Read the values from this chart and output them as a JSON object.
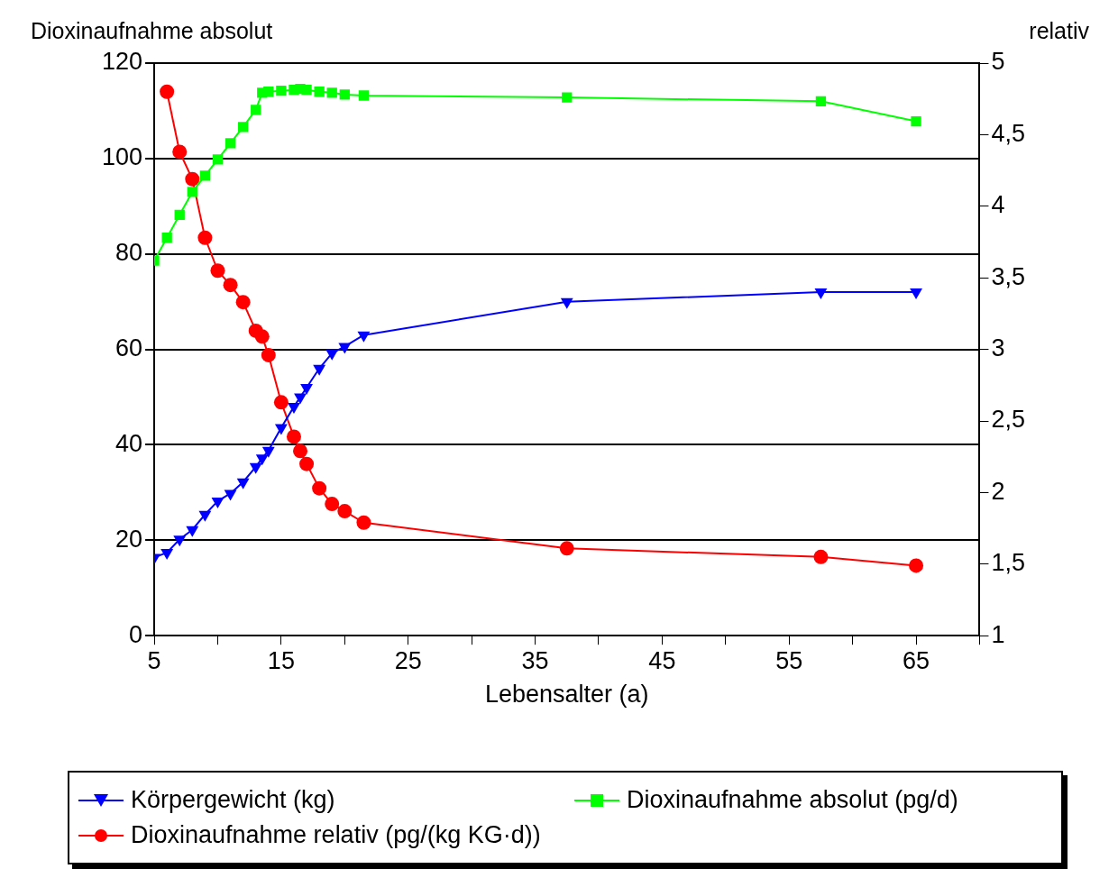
{
  "chart_data": {
    "type": "line",
    "xlabel": "Lebensalter (a)",
    "ylabel": "Dioxinaufnahme absolut",
    "y2label": "relativ",
    "xlim": [
      5,
      70
    ],
    "xticks": [
      5,
      {
        "value": 10,
        "label": null
      },
      15,
      {
        "value": 20,
        "label": null
      },
      25,
      {
        "value": 30,
        "label": null
      },
      35,
      {
        "value": 40,
        "label": null
      },
      45,
      {
        "value": 50,
        "label": null
      },
      55,
      {
        "value": 60,
        "label": null
      },
      65,
      {
        "value": 70,
        "label": null
      }
    ],
    "ylim": [
      0,
      120
    ],
    "yticks": [
      0,
      20,
      40,
      60,
      80,
      100,
      120
    ],
    "y2lim": [
      1,
      5
    ],
    "y2ticks": [
      1,
      {
        "value": 1.5,
        "label": "1,5"
      },
      2,
      {
        "value": 2.5,
        "label": "2,5"
      },
      3,
      {
        "value": 3.5,
        "label": "3,5"
      },
      4,
      {
        "value": 4.5,
        "label": "4,5"
      },
      5
    ],
    "grid": "y",
    "legend": "bottom",
    "line_style": "solid",
    "series": [
      {
        "name": "Körpergewicht (kg)",
        "color": "#0000ff",
        "marker": "triangle",
        "x": [
          5,
          6,
          7,
          8,
          9,
          10,
          11,
          12,
          13,
          13.5,
          14,
          15,
          16,
          16.5,
          17,
          18,
          19,
          20,
          21.5,
          37.5,
          57.5,
          65
        ],
        "values": [
          16.4,
          17.4,
          20.2,
          22.2,
          25.4,
          28.2,
          29.8,
          32.2,
          35.4,
          37.2,
          38.8,
          43.6,
          48,
          50,
          52,
          56,
          59.2,
          60.6,
          63,
          70,
          72,
          72
        ]
      },
      {
        "name": "Dioxinaufnahme absolut (pg/d)",
        "color": "#00ff00",
        "marker": "square",
        "x": [
          5,
          6,
          7,
          8,
          9,
          10,
          11,
          12,
          13,
          13.5,
          14,
          15,
          16,
          16.5,
          17,
          18,
          19,
          20,
          21.5,
          37.5,
          57.5,
          65
        ],
        "values": [
          78.6,
          83.4,
          88.2,
          93,
          96.4,
          99.8,
          103.2,
          106.6,
          110.2,
          113.8,
          114,
          114.2,
          114.4,
          114.6,
          114.4,
          114,
          113.8,
          113.4,
          113.2,
          112.8,
          112,
          107.8
        ]
      },
      {
        "name": "Dioxinaufnahme relativ (pg/(kg KG·d))",
        "color": "#ff0000",
        "marker": "circle",
        "axis": "y2",
        "x": [
          6,
          7,
          8,
          9,
          10,
          11,
          12,
          13,
          13.5,
          14,
          15,
          16,
          16.5,
          17,
          18,
          19,
          20,
          21.5,
          37.5,
          57.5,
          65
        ],
        "values": [
          4.8,
          4.38,
          4.19,
          3.78,
          3.55,
          3.45,
          3.33,
          3.13,
          3.09,
          2.96,
          2.63,
          2.39,
          2.29,
          2.2,
          2.03,
          1.92,
          1.87,
          1.79,
          1.61,
          1.55,
          1.49
        ]
      }
    ]
  }
}
